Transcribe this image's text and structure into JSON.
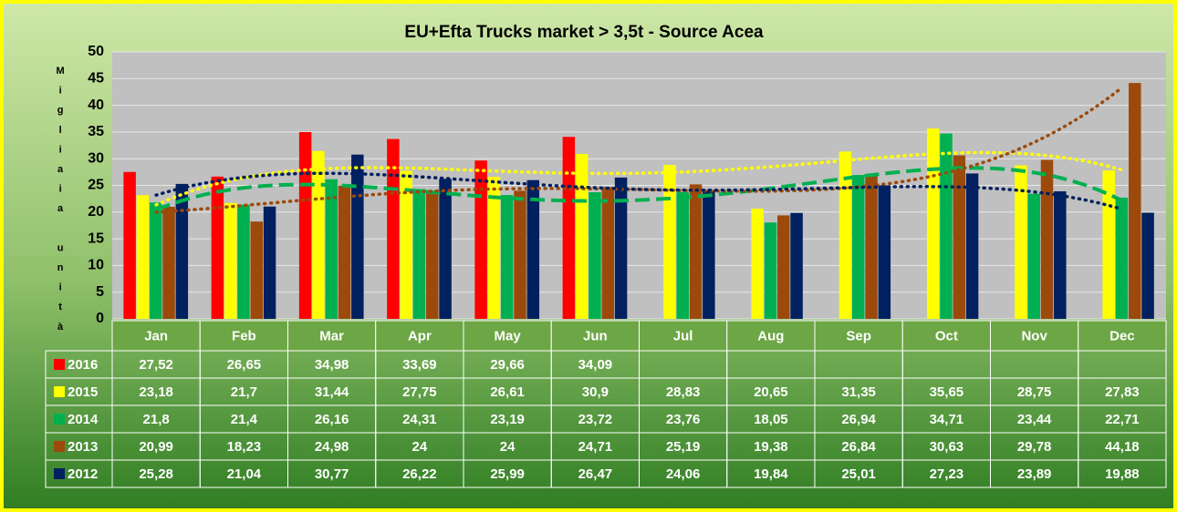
{
  "chart_data": {
    "type": "bar",
    "title": "EU+Efta Trucks market > 3,5t - Source  Acea",
    "y_label": "Migliaia unità",
    "categories": [
      "Jan",
      "Feb",
      "Mar",
      "Apr",
      "May",
      "Jun",
      "Jul",
      "Aug",
      "Sep",
      "Oct",
      "Nov",
      "Dec"
    ],
    "ylim": [
      0,
      50
    ],
    "yticks": [
      0,
      5,
      10,
      15,
      20,
      25,
      30,
      35,
      40,
      45,
      50
    ],
    "grid": true,
    "series": [
      {
        "name": "2016",
        "color": "#ff0000",
        "values": [
          27.52,
          26.65,
          34.98,
          33.69,
          29.66,
          34.09,
          null,
          null,
          null,
          null,
          null,
          null
        ],
        "value_labels": [
          "27,52",
          "26,65",
          "34,98",
          "33,69",
          "29,66",
          "34,09",
          null,
          null,
          null,
          null,
          null,
          null
        ]
      },
      {
        "name": "2015",
        "color": "#ffff00",
        "trendline": "dotted",
        "values": [
          23.18,
          21.7,
          31.44,
          27.75,
          26.61,
          30.9,
          28.83,
          20.65,
          31.35,
          35.65,
          28.75,
          27.83
        ],
        "value_labels": [
          "23,18",
          "21,7",
          "31,44",
          "27,75",
          "26,61",
          "30,9",
          "28,83",
          "20,65",
          "31,35",
          "35,65",
          "28,75",
          "27,83"
        ]
      },
      {
        "name": "2014",
        "color": "#00b050",
        "trendline": "dashed",
        "values": [
          21.8,
          21.4,
          26.16,
          24.31,
          23.19,
          23.72,
          23.76,
          18.05,
          26.94,
          34.71,
          23.44,
          22.71
        ],
        "value_labels": [
          "21,8",
          "21,4",
          "26,16",
          "24,31",
          "23,19",
          "23,72",
          "23,76",
          "18,05",
          "26,94",
          "34,71",
          "23,44",
          "22,71"
        ]
      },
      {
        "name": "2013",
        "color": "#9c4a0c",
        "trendline": "dotted",
        "values": [
          20.99,
          18.23,
          24.98,
          24,
          24,
          24.71,
          25.19,
          19.38,
          26.84,
          30.63,
          29.78,
          44.18
        ],
        "value_labels": [
          "20,99",
          "18,23",
          "24,98",
          "24",
          "24",
          "24,71",
          "25,19",
          "19,38",
          "26,84",
          "30,63",
          "29,78",
          "44,18"
        ]
      },
      {
        "name": "2012",
        "color": "#002060",
        "trendline": "dotted",
        "values": [
          25.28,
          21.04,
          30.77,
          26.22,
          25.99,
          26.47,
          24.06,
          19.84,
          25.01,
          27.23,
          23.89,
          19.88
        ],
        "value_labels": [
          "25,28",
          "21,04",
          "30,77",
          "26,22",
          "25,99",
          "26,47",
          "24,06",
          "19,84",
          "25,01",
          "27,23",
          "23,89",
          "19,88"
        ]
      }
    ]
  }
}
